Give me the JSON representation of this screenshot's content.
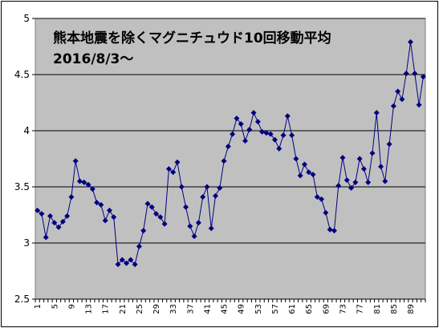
{
  "chart_data": {
    "type": "line",
    "title_line1": "熊本地震を除くマグニチュウド10回移動平均",
    "title_line2": "2016/8/3～",
    "xlabel": "",
    "ylabel": "",
    "ylim": [
      2.5,
      5
    ],
    "y_ticks": [
      "2.5",
      "3",
      "3.5",
      "4",
      "4.5",
      "5"
    ],
    "x_tick_labels": [
      "1",
      "5",
      "9",
      "13",
      "17",
      "21",
      "25",
      "29",
      "33",
      "37",
      "41",
      "45",
      "49",
      "53",
      "57",
      "61",
      "65",
      "69",
      "73",
      "77",
      "81",
      "85",
      "89"
    ],
    "x_tick_every": 4,
    "grid": "horizontal",
    "plot_background": "#c0c0c0",
    "line_color": "#000080",
    "marker": "diamond",
    "series": [
      {
        "values": [
          3.29,
          3.26,
          3.05,
          3.24,
          3.18,
          3.14,
          3.19,
          3.24,
          3.41,
          3.73,
          3.55,
          3.54,
          3.52,
          3.48,
          3.36,
          3.34,
          3.2,
          3.29,
          3.23,
          2.81,
          2.85,
          2.82,
          2.85,
          2.81,
          2.97,
          3.11,
          3.35,
          3.32,
          3.26,
          3.23,
          3.17,
          3.66,
          3.63,
          3.72,
          3.5,
          3.32,
          3.15,
          3.06,
          3.18,
          3.41,
          3.5,
          3.13,
          3.42,
          3.49,
          3.73,
          3.86,
          3.97,
          4.11,
          4.06,
          3.91,
          4.01,
          4.16,
          4.08,
          3.99,
          3.98,
          3.97,
          3.92,
          3.84,
          3.96,
          4.13,
          3.96,
          3.75,
          3.6,
          3.7,
          3.63,
          3.61,
          3.41,
          3.39,
          3.27,
          3.12,
          3.11,
          3.51,
          3.76,
          3.56,
          3.49,
          3.54,
          3.75,
          3.66,
          3.54,
          3.8,
          4.16,
          3.68,
          3.55,
          3.88,
          4.22,
          4.35,
          4.28,
          4.51,
          4.79,
          4.51,
          4.23,
          4.48
        ]
      }
    ]
  }
}
